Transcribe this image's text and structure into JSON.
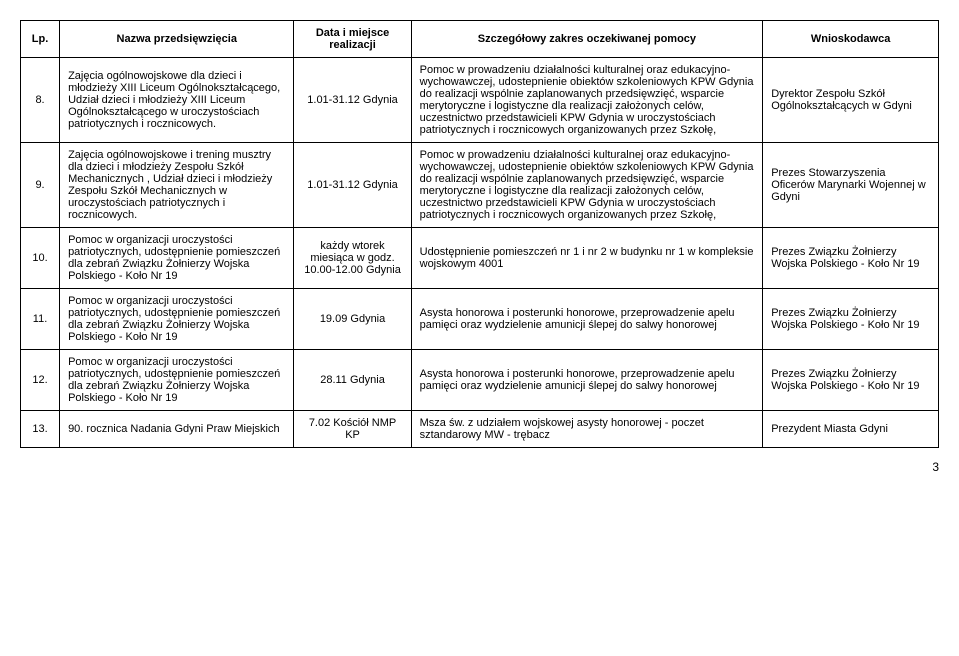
{
  "headers": {
    "lp": "Lp.",
    "name": "Nazwa przedsięwzięcia",
    "date": "Data i miejsce realizacji",
    "scope": "Szczegółowy zakres oczekiwanej pomocy",
    "applicant": "Wnioskodawca"
  },
  "rows": [
    {
      "lp": "8.",
      "name": "Zajęcia ogólnowojskowe dla dzieci i młodzieży XIII Liceum Ogólnokształcącego, Udział dzieci i młodzieży XIII Liceum Ogólnokształcącego w uroczystościach patriotycznych i rocznicowych.",
      "date": "1.01-31.12 Gdynia",
      "scope": "Pomoc w prowadzeniu działalności kulturalnej oraz edukacyjno-wychowawczej, udostepnienie obiektów szkoleniowych KPW Gdynia do realizacji wspólnie zaplanowanych przedsięwzięć, wsparcie merytoryczne i logistyczne dla realizacji założonych celów, uczestnictwo przedstawicieli KPW Gdynia w uroczystościach patriotycznych i rocznicowych organizowanych przez Szkołę,",
      "applicant": "Dyrektor Zespołu Szkół Ogólnokształcących w Gdyni"
    },
    {
      "lp": "9.",
      "name": "Zajęcia ogólnowojskowe i trening musztry dla dzieci i młodzieży Zespołu Szkół Mechanicznych , Udział dzieci i młodzieży Zespołu Szkół Mechanicznych w uroczystościach patriotycznych i rocznicowych.",
      "date": "1.01-31.12 Gdynia",
      "scope": "Pomoc w prowadzeniu działalności kulturalnej oraz edukacyjno-wychowawczej, udostepnienie obiektów szkoleniowych KPW Gdynia do realizacji wspólnie zaplanowanych przedsięwzięć, wsparcie merytoryczne i logistyczne dla realizacji założonych celów, uczestnictwo przedstawicieli KPW Gdynia w uroczystościach patriotycznych i rocznicowych organizowanych przez Szkołę,",
      "applicant": "Prezes Stowarzyszenia Oficerów Marynarki Wojennej w Gdyni"
    },
    {
      "lp": "10.",
      "name": "Pomoc w organizacji uroczystości patriotycznych, udostępnienie pomieszczeń dla zebrań Związku Żołnierzy Wojska Polskiego - Koło Nr 19",
      "date": "każdy wtorek miesiąca w godz. 10.00-12.00 Gdynia",
      "scope": "Udostępnienie pomieszczeń nr 1 i nr 2 w budynku nr 1 w kompleksie wojskowym 4001",
      "applicant": "Prezes Związku Żołnierzy Wojska Polskiego - Koło Nr 19"
    },
    {
      "lp": "11.",
      "name": "Pomoc w organizacji uroczystości patriotycznych, udostępnienie pomieszczeń dla zebrań Związku Żołnierzy Wojska Polskiego - Koło Nr 19",
      "date": "19.09 Gdynia",
      "scope": " Asysta honorowa i posterunki honorowe, przeprowadzenie apelu pamięci oraz wydzielenie amunicji ślepej do salwy honorowej",
      "applicant": "Prezes Związku Żołnierzy Wojska Polskiego - Koło Nr 19"
    },
    {
      "lp": "12.",
      "name": "Pomoc w organizacji uroczystości patriotycznych, udostępnienie pomieszczeń dla zebrań Związku Żołnierzy Wojska Polskiego - Koło Nr 19",
      "date": "28.11 Gdynia",
      "scope": "Asysta honorowa i posterunki honorowe, przeprowadzenie apelu pamięci oraz wydzielenie amunicji ślepej do salwy honorowej",
      "applicant": "Prezes Związku Żołnierzy Wojska Polskiego - Koło Nr 19"
    },
    {
      "lp": "13.",
      "name": "90. rocznica Nadania Gdyni Praw Miejskich",
      "date": "7.02 Kościół NMP KP",
      "scope": " Msza św.  z udziałem wojskowej asysty honorowej\n - poczet sztandarowy MW\n - trębacz",
      "applicant": "Prezydent\n Miasta Gdyni"
    }
  ],
  "pageNumber": "3",
  "style": {
    "font_family": "Arial, sans-serif",
    "font_size_pt": 11,
    "border_color": "#000000",
    "background_color": "#ffffff",
    "text_color": "#000000"
  }
}
